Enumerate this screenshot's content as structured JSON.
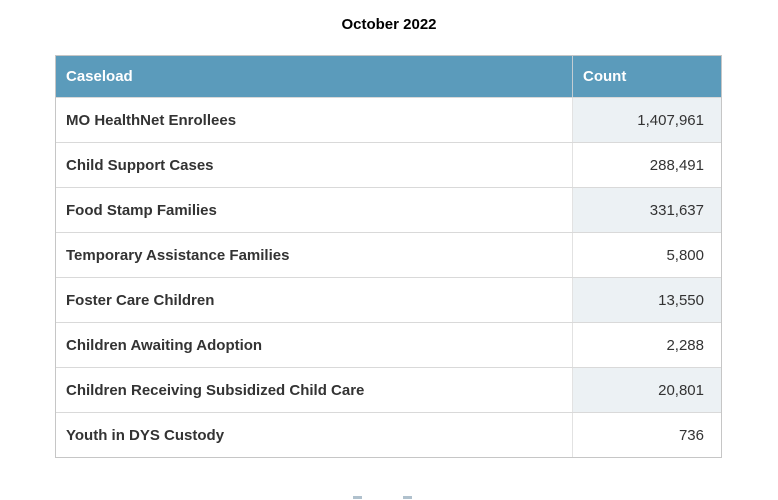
{
  "page": {
    "title": "October 2022"
  },
  "table": {
    "headers": {
      "caseload": "Caseload",
      "count": "Count"
    },
    "rows": [
      {
        "label": "MO HealthNet Enrollees",
        "count": "1,407,961"
      },
      {
        "label": "Child Support Cases",
        "count": "288,491"
      },
      {
        "label": "Food Stamp Families",
        "count": "331,637"
      },
      {
        "label": "Temporary Assistance Families",
        "count": "5,800"
      },
      {
        "label": "Foster Care Children",
        "count": "13,550"
      },
      {
        "label": "Children Awaiting Adoption",
        "count": "2,288"
      },
      {
        "label": "Children Receiving Subsidized Child Care",
        "count": "20,801"
      },
      {
        "label": "Youth in DYS Custody",
        "count": "736"
      }
    ]
  },
  "colors": {
    "header_bg": "#5b9bbb",
    "header_text": "#ffffff",
    "alt_count_cell_bg": "#ecf1f4",
    "body_text": "#333333",
    "border": "#c6c6c6"
  },
  "chart_data": {
    "type": "table",
    "title": "October 2022",
    "columns": [
      "Caseload",
      "Count"
    ],
    "rows": [
      [
        "MO HealthNet Enrollees",
        1407961
      ],
      [
        "Child Support Cases",
        288491
      ],
      [
        "Food Stamp Families",
        331637
      ],
      [
        "Temporary Assistance Families",
        5800
      ],
      [
        "Foster Care Children",
        13550
      ],
      [
        "Children Awaiting Adoption",
        2288
      ],
      [
        "Children Receiving Subsidized Child Care",
        20801
      ],
      [
        "Youth in DYS Custody",
        736
      ]
    ],
    "layout": {
      "title_position": "top-center",
      "count_alignment": "right",
      "row_striping": "count-column-only, odd rows tinted"
    }
  }
}
